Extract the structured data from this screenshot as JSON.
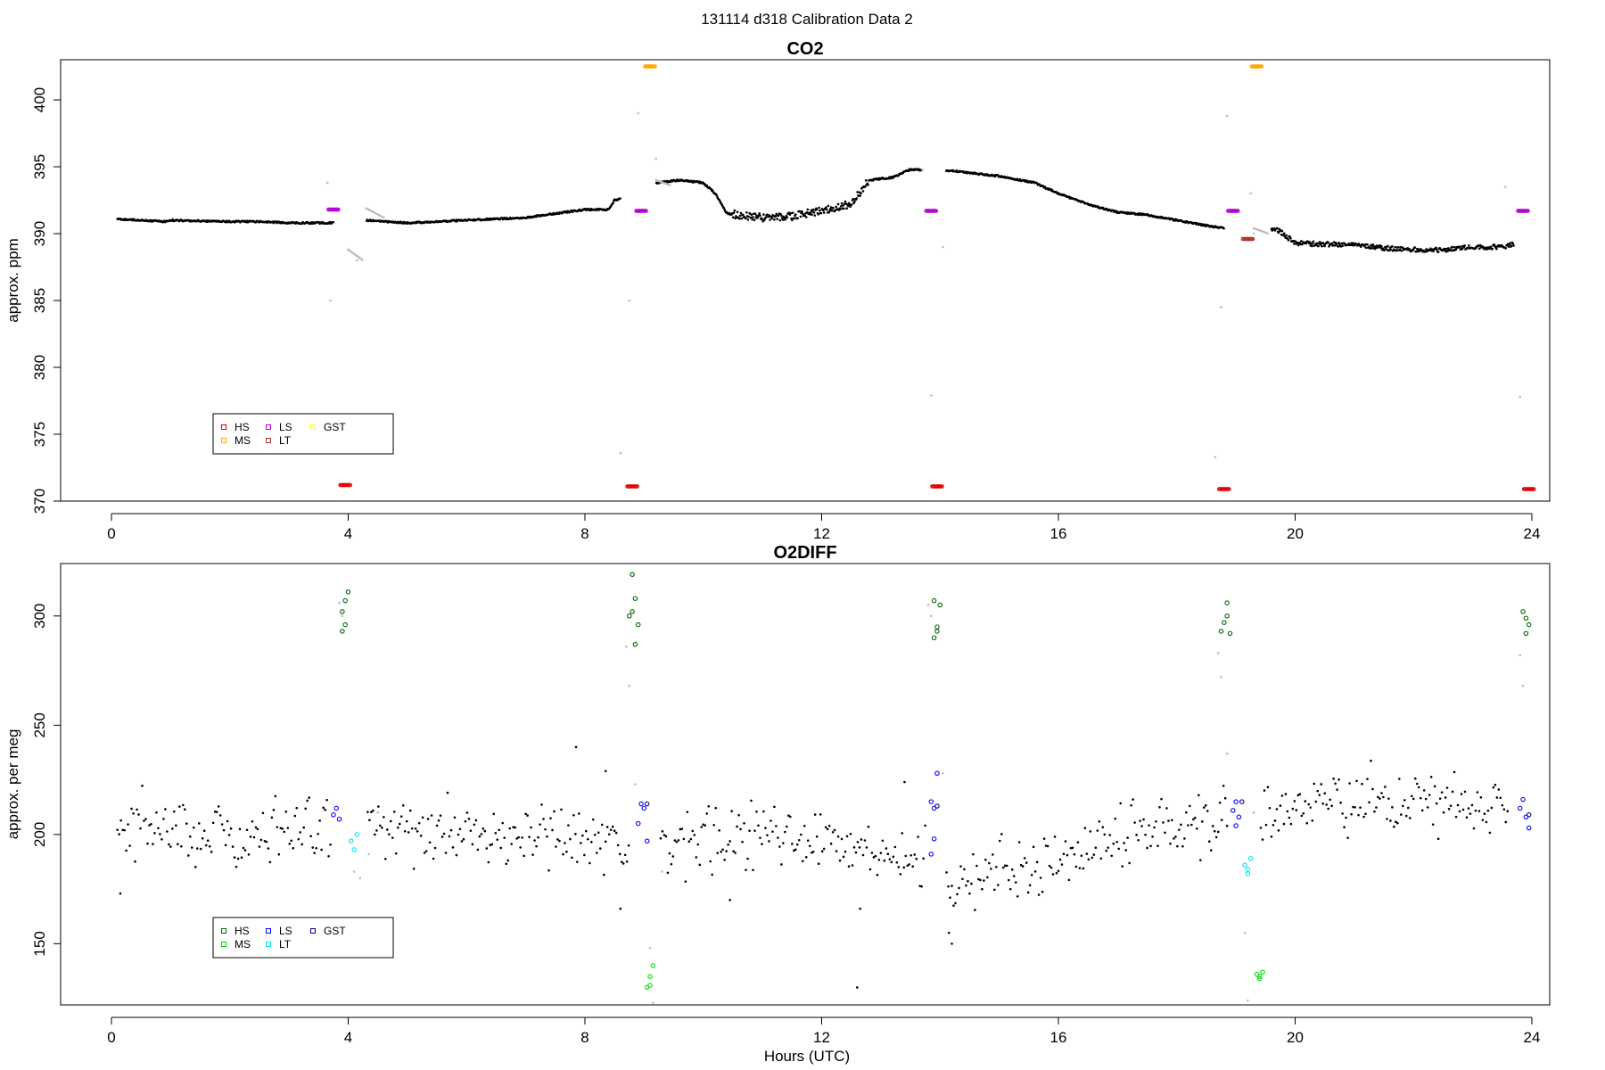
{
  "title": "131114   d318   Calibration Data 2",
  "xlabel": "Hours (UTC)",
  "colors": {
    "ambient": "#000000",
    "excluded": "#bbbbbb",
    "HS": "#e00000",
    "MS": "#ffa500",
    "LS": "#b000d0",
    "LT": "#b03030",
    "GST": "#ffff00",
    "o2_HS": "#006400",
    "o2_MS": "#00dd00",
    "o2_LS": "#0000ff",
    "o2_LT": "#00e5ee",
    "o2_GST": "#00008b"
  },
  "chart_data": [
    {
      "type": "scatter",
      "title": "CO2",
      "ylabel": "approx. ppm",
      "xlim": [
        0,
        24
      ],
      "ylim": [
        370,
        403
      ],
      "xticks": [
        0,
        4,
        8,
        12,
        16,
        20,
        24
      ],
      "yticks": [
        370,
        375,
        380,
        385,
        390,
        395,
        400
      ],
      "legend": {
        "position": "bottom-left",
        "entries": [
          "HS",
          "MS",
          "LS",
          "LT",
          "GST"
        ]
      },
      "ambient_trace": [
        [
          0.1,
          391.1
        ],
        [
          0.5,
          391.0
        ],
        [
          0.9,
          390.9
        ],
        [
          1.0,
          391.0
        ],
        [
          2.0,
          390.9
        ],
        [
          2.5,
          390.9
        ],
        [
          3.0,
          390.8
        ],
        [
          3.7,
          390.8
        ],
        [
          4.3,
          391.0
        ],
        [
          5.0,
          390.8
        ],
        [
          6.0,
          391.0
        ],
        [
          7.0,
          391.2
        ],
        [
          7.5,
          391.5
        ],
        [
          8.0,
          391.8
        ],
        [
          8.4,
          391.8
        ],
        [
          8.5,
          392.5
        ],
        [
          8.7,
          392.7
        ],
        [
          9.2,
          393.8
        ],
        [
          9.6,
          394.0
        ],
        [
          10.0,
          393.8
        ],
        [
          10.2,
          393.0
        ],
        [
          10.4,
          391.5
        ],
        [
          11.0,
          391.2
        ],
        [
          11.5,
          391.3
        ],
        [
          12.0,
          391.7
        ],
        [
          12.5,
          392.2
        ],
        [
          12.8,
          394.0
        ],
        [
          13.2,
          394.2
        ],
        [
          13.5,
          394.8
        ],
        [
          14.2,
          394.7
        ],
        [
          15.0,
          394.3
        ],
        [
          15.6,
          393.8
        ],
        [
          16.0,
          393.0
        ],
        [
          16.5,
          392.2
        ],
        [
          17.0,
          391.6
        ],
        [
          17.5,
          391.4
        ],
        [
          18.0,
          391.0
        ],
        [
          18.5,
          390.6
        ],
        [
          18.8,
          390.4
        ],
        [
          19.7,
          390.3
        ],
        [
          20.0,
          389.3
        ],
        [
          20.5,
          389.2
        ],
        [
          21.0,
          389.2
        ],
        [
          21.5,
          388.9
        ],
        [
          22.0,
          388.8
        ],
        [
          22.5,
          388.8
        ],
        [
          23.0,
          389.0
        ],
        [
          23.5,
          389.0
        ],
        [
          23.7,
          389.2
        ]
      ],
      "excluded_points": [
        [
          3.65,
          393.8
        ],
        [
          3.7,
          385.0
        ],
        [
          4.0,
          388.8
        ],
        [
          4.15,
          388.0
        ],
        [
          4.35,
          391.8
        ],
        [
          8.6,
          373.6
        ],
        [
          8.75,
          385.0
        ],
        [
          8.9,
          399.0
        ],
        [
          9.2,
          395.6
        ],
        [
          9.3,
          393.8
        ],
        [
          13.7,
          394.8
        ],
        [
          13.85,
          377.9
        ],
        [
          14.05,
          389.0
        ],
        [
          18.65,
          373.3
        ],
        [
          18.75,
          384.5
        ],
        [
          18.85,
          398.8
        ],
        [
          19.25,
          393.0
        ],
        [
          19.3,
          390.0
        ],
        [
          23.55,
          393.5
        ],
        [
          23.8,
          377.8
        ]
      ],
      "series": [
        {
          "name": "HS",
          "points": [
            [
              3.95,
              371.2
            ],
            [
              8.8,
              371.1
            ],
            [
              13.95,
              371.1
            ],
            [
              18.8,
              370.9
            ],
            [
              23.95,
              370.9
            ]
          ]
        },
        {
          "name": "MS",
          "points": [
            [
              9.1,
              402.5
            ],
            [
              19.35,
              402.5
            ]
          ]
        },
        {
          "name": "LS",
          "points": [
            [
              3.75,
              391.8
            ],
            [
              8.95,
              391.7
            ],
            [
              13.85,
              391.7
            ],
            [
              18.95,
              391.7
            ],
            [
              23.85,
              391.7
            ]
          ]
        },
        {
          "name": "LT",
          "points": [
            [
              19.2,
              389.6
            ]
          ]
        },
        {
          "name": "GST",
          "points": []
        }
      ]
    },
    {
      "type": "scatter",
      "title": "O2DIFF",
      "ylabel": "approx. per meg",
      "xlim": [
        0,
        24
      ],
      "ylim": [
        122,
        324
      ],
      "xticks": [
        0,
        4,
        8,
        12,
        16,
        20,
        24
      ],
      "yticks": [
        150,
        200,
        250,
        300
      ],
      "legend": {
        "position": "bottom-left",
        "entries": [
          "HS",
          "MS",
          "LS",
          "LT",
          "GST"
        ]
      },
      "ambient_trend": [
        [
          0,
          200
        ],
        [
          1,
          202
        ],
        [
          2,
          201
        ],
        [
          3,
          203
        ],
        [
          3.6,
          204
        ],
        [
          4.4,
          203
        ],
        [
          5.5,
          201
        ],
        [
          6.5,
          199
        ],
        [
          7.5,
          200
        ],
        [
          8.0,
          197
        ],
        [
          8.5,
          192
        ],
        [
          8.7,
          188
        ],
        [
          9.3,
          194
        ],
        [
          10.0,
          195
        ],
        [
          11.0,
          202
        ],
        [
          12.0,
          198
        ],
        [
          12.5,
          193
        ],
        [
          13.0,
          189
        ],
        [
          13.6,
          187
        ],
        [
          14.2,
          178
        ],
        [
          15.0,
          183
        ],
        [
          16.0,
          189
        ],
        [
          16.5,
          195
        ],
        [
          17.0,
          199
        ],
        [
          18.0,
          205
        ],
        [
          18.7,
          208
        ],
        [
          19.5,
          210
        ],
        [
          20.0,
          212
        ],
        [
          21.0,
          214
        ],
        [
          22.0,
          216
        ],
        [
          23.0,
          214
        ],
        [
          23.6,
          213
        ]
      ],
      "ambient_scatter": 7,
      "ambient_outliers": [
        [
          0.15,
          173
        ],
        [
          7.85,
          240
        ],
        [
          8.35,
          229
        ],
        [
          8.6,
          166
        ],
        [
          10.45,
          170
        ],
        [
          12.65,
          166
        ],
        [
          12.6,
          130
        ],
        [
          13.4,
          224
        ],
        [
          14.15,
          155
        ],
        [
          14.2,
          150
        ]
      ],
      "excluded_points": [
        [
          3.9,
          300
        ],
        [
          3.85,
          306
        ],
        [
          4.1,
          183
        ],
        [
          4.2,
          180
        ],
        [
          4.35,
          191
        ],
        [
          4.5,
          210
        ],
        [
          8.7,
          286
        ],
        [
          8.75,
          268
        ],
        [
          8.85,
          223
        ],
        [
          9.1,
          148
        ],
        [
          9.15,
          123
        ],
        [
          9.3,
          183
        ],
        [
          13.8,
          305
        ],
        [
          13.85,
          300
        ],
        [
          14.05,
          228
        ],
        [
          18.7,
          283
        ],
        [
          18.75,
          272
        ],
        [
          18.85,
          237
        ],
        [
          19.15,
          155
        ],
        [
          19.2,
          124
        ],
        [
          19.3,
          210
        ],
        [
          23.8,
          282
        ],
        [
          23.85,
          268
        ]
      ],
      "series": [
        {
          "name": "HS",
          "points": [
            [
              3.9,
              293
            ],
            [
              3.95,
              296
            ],
            [
              3.9,
              302
            ],
            [
              3.95,
              307
            ],
            [
              4.0,
              311
            ],
            [
              8.75,
              300
            ],
            [
              8.8,
              302
            ],
            [
              8.85,
              308
            ],
            [
              8.8,
              319
            ],
            [
              8.9,
              296
            ],
            [
              8.85,
              287
            ],
            [
              13.9,
              307
            ],
            [
              14.0,
              305
            ],
            [
              13.95,
              295
            ],
            [
              13.9,
              290
            ],
            [
              13.95,
              293
            ],
            [
              18.75,
              293
            ],
            [
              18.8,
              297
            ],
            [
              18.85,
              300
            ],
            [
              18.85,
              306
            ],
            [
              18.9,
              292
            ],
            [
              23.85,
              302
            ],
            [
              23.9,
              299
            ],
            [
              23.95,
              296
            ],
            [
              23.9,
              292
            ]
          ]
        },
        {
          "name": "MS",
          "points": [
            [
              9.05,
              130
            ],
            [
              9.1,
              135
            ],
            [
              9.15,
              140
            ],
            [
              9.1,
              131
            ],
            [
              19.35,
              136
            ],
            [
              19.4,
              135
            ],
            [
              19.45,
              137
            ],
            [
              19.4,
              134
            ]
          ]
        },
        {
          "name": "LS",
          "points": [
            [
              3.75,
              209
            ],
            [
              3.8,
              212
            ],
            [
              3.85,
              207
            ],
            [
              8.9,
              205
            ],
            [
              8.95,
              214
            ],
            [
              9.0,
              212
            ],
            [
              9.05,
              197
            ],
            [
              13.85,
              215
            ],
            [
              13.9,
              212
            ],
            [
              13.95,
              228
            ],
            [
              13.9,
              198
            ],
            [
              13.85,
              191
            ],
            [
              18.95,
              211
            ],
            [
              19.0,
              215
            ],
            [
              19.05,
              208
            ],
            [
              19.0,
              204
            ],
            [
              23.8,
              212
            ],
            [
              23.85,
              216
            ],
            [
              23.9,
              208
            ],
            [
              23.95,
              203
            ]
          ]
        },
        {
          "name": "LT",
          "points": [
            [
              4.05,
              197
            ],
            [
              4.1,
              193
            ],
            [
              4.15,
              200
            ],
            [
              19.15,
              186
            ],
            [
              19.2,
              182
            ],
            [
              19.25,
              189
            ],
            [
              19.2,
              184
            ]
          ]
        },
        {
          "name": "GST",
          "points": [
            [
              9.05,
              214
            ],
            [
              13.95,
              213
            ],
            [
              19.1,
              215
            ],
            [
              23.95,
              209
            ]
          ]
        }
      ]
    }
  ]
}
